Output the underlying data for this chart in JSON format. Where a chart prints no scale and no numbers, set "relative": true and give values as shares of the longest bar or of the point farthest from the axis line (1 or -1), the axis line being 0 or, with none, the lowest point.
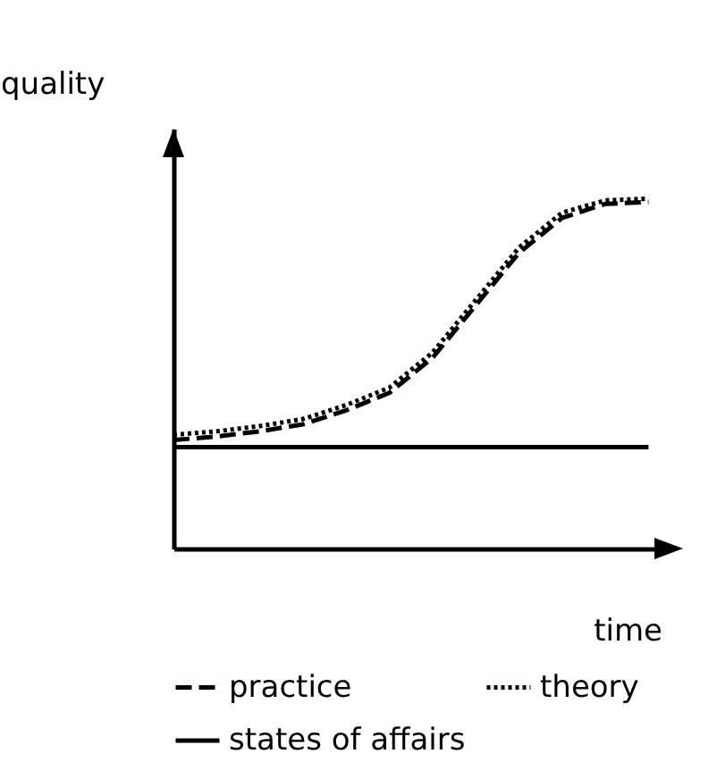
{
  "chart_data": {
    "type": "line",
    "xlabel": "time",
    "ylabel": "quality",
    "relative": true,
    "categories": [
      null,
      null,
      null,
      null,
      null,
      null,
      null,
      null,
      null,
      null,
      null,
      null
    ],
    "series": [
      {
        "name": "practice",
        "color": "#000000",
        "line_style": "dashed",
        "values": [
          0.31,
          0.32,
          0.335,
          0.355,
          0.395,
          0.445,
          0.545,
          0.695,
          0.845,
          0.945,
          0.985,
          0.99
        ]
      },
      {
        "name": "theory",
        "color": "#000000",
        "line_style": "dotted",
        "values": [
          0.325,
          0.335,
          0.35,
          0.37,
          0.41,
          0.46,
          0.56,
          0.71,
          0.86,
          0.96,
          0.995,
          1.0
        ]
      },
      {
        "name": "states of affairs",
        "color": "#000000",
        "line_style": "solid",
        "values": [
          0.29,
          0.29,
          0.29,
          0.29,
          0.29,
          0.29,
          0.29,
          0.29,
          0.29,
          0.29,
          0.29,
          0.29
        ]
      }
    ],
    "legend": "bottom",
    "grid": false,
    "marker": "none"
  }
}
